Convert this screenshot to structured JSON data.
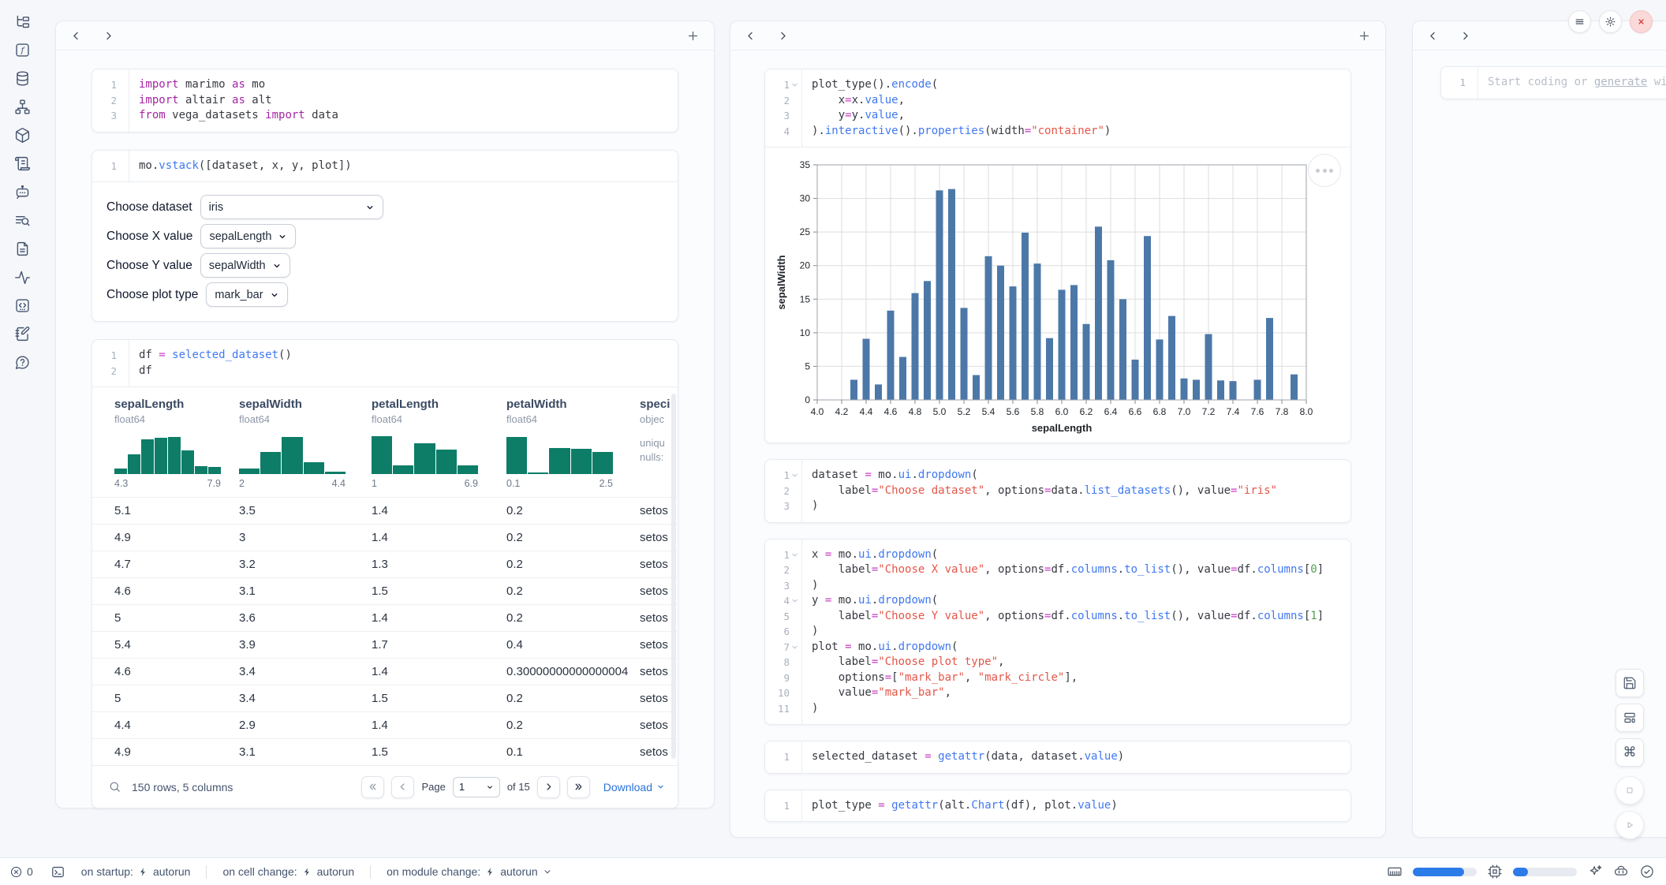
{
  "sidebar": {
    "items": [
      {
        "icon": "file-tree"
      },
      {
        "icon": "variables"
      },
      {
        "icon": "datasources"
      },
      {
        "icon": "dependencies"
      },
      {
        "icon": "packages"
      },
      {
        "icon": "logs"
      },
      {
        "icon": "ai-chat"
      },
      {
        "icon": "list-search"
      },
      {
        "icon": "documentation"
      },
      {
        "icon": "tracing"
      },
      {
        "icon": "snippets"
      },
      {
        "icon": "scratchpad"
      },
      {
        "icon": "help"
      }
    ]
  },
  "left_panel": {
    "cells": [
      {
        "id": "imports-cell",
        "lines": [
          {
            "n": "1",
            "t": [
              [
                "k",
                "import"
              ],
              [
                "p",
                " marimo "
              ],
              [
                "k",
                "as"
              ],
              [
                "p",
                " mo"
              ]
            ]
          },
          {
            "n": "2",
            "t": [
              [
                "k",
                "import"
              ],
              [
                "p",
                " altair "
              ],
              [
                "k",
                "as"
              ],
              [
                "p",
                " alt"
              ]
            ]
          },
          {
            "n": "3",
            "t": [
              [
                "k",
                "from"
              ],
              [
                "p",
                " vega_datasets "
              ],
              [
                "k",
                "import"
              ],
              [
                "p",
                " data"
              ]
            ]
          }
        ]
      },
      {
        "id": "vstack-cell",
        "output": "dropdowns",
        "lines": [
          {
            "n": "1",
            "t": [
              [
                "p",
                "mo."
              ],
              [
                "f",
                "vstack"
              ],
              [
                "p",
                "([dataset, x, y, plot])"
              ]
            ]
          }
        ]
      },
      {
        "id": "df-cell",
        "output": "table",
        "lines": [
          {
            "n": "1",
            "t": [
              [
                "p",
                "df "
              ],
              [
                "o",
                "="
              ],
              [
                "p",
                " "
              ],
              [
                "f",
                "selected_dataset"
              ],
              [
                "p",
                "()"
              ]
            ]
          },
          {
            "n": "2",
            "t": [
              [
                "p",
                "df"
              ]
            ]
          }
        ]
      }
    ],
    "dropdowns": [
      {
        "label": "Choose dataset",
        "value": "iris",
        "wide": true
      },
      {
        "label": "Choose X value",
        "value": "sepalLength"
      },
      {
        "label": "Choose Y value",
        "value": "sepalWidth"
      },
      {
        "label": "Choose plot type",
        "value": "mark_bar"
      }
    ],
    "table": {
      "columns": [
        {
          "name": "sepalLength",
          "dtype": "float64",
          "min": "4.3",
          "max": "7.9",
          "hist": [
            14,
            50,
            88,
            92,
            95,
            60,
            20,
            18
          ]
        },
        {
          "name": "sepalWidth",
          "dtype": "float64",
          "min": "2",
          "max": "4.4",
          "hist": [
            14,
            56,
            95,
            30,
            6
          ]
        },
        {
          "name": "petalLength",
          "dtype": "float64",
          "min": "1",
          "max": "6.9",
          "hist": [
            97,
            22,
            78,
            62,
            22
          ]
        },
        {
          "name": "petalWidth",
          "dtype": "float64",
          "min": "0.1",
          "max": "2.5",
          "hist": [
            95,
            5,
            66,
            64,
            56
          ]
        },
        {
          "name": "speci",
          "dtype": "objec",
          "meta": [
            "uniqu",
            "nulls:"
          ]
        }
      ],
      "rows": [
        [
          "5.1",
          "3.5",
          "1.4",
          "0.2",
          "setos"
        ],
        [
          "4.9",
          "3",
          "1.4",
          "0.2",
          "setos"
        ],
        [
          "4.7",
          "3.2",
          "1.3",
          "0.2",
          "setos"
        ],
        [
          "4.6",
          "3.1",
          "1.5",
          "0.2",
          "setos"
        ],
        [
          "5",
          "3.6",
          "1.4",
          "0.2",
          "setos"
        ],
        [
          "5.4",
          "3.9",
          "1.7",
          "0.4",
          "setos"
        ],
        [
          "4.6",
          "3.4",
          "1.4",
          "0.30000000000000004",
          "setos"
        ],
        [
          "5",
          "3.4",
          "1.5",
          "0.2",
          "setos"
        ],
        [
          "4.4",
          "2.9",
          "1.4",
          "0.2",
          "setos"
        ],
        [
          "4.9",
          "3.1",
          "1.5",
          "0.1",
          "setos"
        ]
      ],
      "footer": {
        "summary": "150 rows, 5 columns",
        "page_label": "Page",
        "page_value": "1",
        "pages_label": "of 15",
        "download_label": "Download"
      }
    }
  },
  "middle_panel": {
    "cells": [
      {
        "id": "plot-cell",
        "output": "chart",
        "lines": [
          {
            "n": "1",
            "fold": true,
            "t": [
              [
                "p",
                "plot_type()."
              ],
              [
                "f",
                "encode"
              ],
              [
                "p",
                "("
              ]
            ]
          },
          {
            "n": "2",
            "t": [
              [
                "p",
                "    x"
              ],
              [
                "o",
                "="
              ],
              [
                "p",
                "x."
              ],
              [
                "f",
                "value"
              ],
              [
                "p",
                ","
              ]
            ]
          },
          {
            "n": "3",
            "t": [
              [
                "p",
                "    y"
              ],
              [
                "o",
                "="
              ],
              [
                "p",
                "y."
              ],
              [
                "f",
                "value"
              ],
              [
                "p",
                ","
              ]
            ]
          },
          {
            "n": "4",
            "t": [
              [
                "p",
                ")."
              ],
              [
                "f",
                "interactive"
              ],
              [
                "p",
                "()."
              ],
              [
                "f",
                "properties"
              ],
              [
                "p",
                "(width"
              ],
              [
                "o",
                "="
              ],
              [
                "s",
                "\"container\""
              ],
              [
                "p",
                ")"
              ]
            ]
          }
        ]
      },
      {
        "id": "dataset-dropdown-cell",
        "lines": [
          {
            "n": "1",
            "fold": true,
            "t": [
              [
                "p",
                "dataset "
              ],
              [
                "o",
                "="
              ],
              [
                "p",
                " mo."
              ],
              [
                "f",
                "ui"
              ],
              [
                "p",
                "."
              ],
              [
                "f",
                "dropdown"
              ],
              [
                "p",
                "("
              ]
            ]
          },
          {
            "n": "2",
            "t": [
              [
                "p",
                "    label"
              ],
              [
                "o",
                "="
              ],
              [
                "s",
                "\"Choose dataset\""
              ],
              [
                "p",
                ", options"
              ],
              [
                "o",
                "="
              ],
              [
                "p",
                "data."
              ],
              [
                "f",
                "list_datasets"
              ],
              [
                "p",
                "(), value"
              ],
              [
                "o",
                "="
              ],
              [
                "s",
                "\"iris\""
              ]
            ]
          },
          {
            "n": "3",
            "t": [
              [
                "p",
                ")"
              ]
            ]
          }
        ]
      },
      {
        "id": "xy-plot-dropdowns-cell",
        "lines": [
          {
            "n": "1",
            "fold": true,
            "t": [
              [
                "p",
                "x "
              ],
              [
                "o",
                "="
              ],
              [
                "p",
                " mo."
              ],
              [
                "f",
                "ui"
              ],
              [
                "p",
                "."
              ],
              [
                "f",
                "dropdown"
              ],
              [
                "p",
                "("
              ]
            ]
          },
          {
            "n": "2",
            "t": [
              [
                "p",
                "    label"
              ],
              [
                "o",
                "="
              ],
              [
                "s",
                "\"Choose X value\""
              ],
              [
                "p",
                ", options"
              ],
              [
                "o",
                "="
              ],
              [
                "p",
                "df."
              ],
              [
                "f",
                "columns"
              ],
              [
                "p",
                "."
              ],
              [
                "f",
                "to_list"
              ],
              [
                "p",
                "(), value"
              ],
              [
                "o",
                "="
              ],
              [
                "p",
                "df."
              ],
              [
                "f",
                "columns"
              ],
              [
                "p",
                "["
              ],
              [
                "n",
                "0"
              ],
              [
                "p",
                "]"
              ]
            ]
          },
          {
            "n": "3",
            "t": [
              [
                "p",
                ")"
              ]
            ]
          },
          {
            "n": "4",
            "fold": true,
            "t": [
              [
                "p",
                "y "
              ],
              [
                "o",
                "="
              ],
              [
                "p",
                " mo."
              ],
              [
                "f",
                "ui"
              ],
              [
                "p",
                "."
              ],
              [
                "f",
                "dropdown"
              ],
              [
                "p",
                "("
              ]
            ]
          },
          {
            "n": "5",
            "t": [
              [
                "p",
                "    label"
              ],
              [
                "o",
                "="
              ],
              [
                "s",
                "\"Choose Y value\""
              ],
              [
                "p",
                ", options"
              ],
              [
                "o",
                "="
              ],
              [
                "p",
                "df."
              ],
              [
                "f",
                "columns"
              ],
              [
                "p",
                "."
              ],
              [
                "f",
                "to_list"
              ],
              [
                "p",
                "(), value"
              ],
              [
                "o",
                "="
              ],
              [
                "p",
                "df."
              ],
              [
                "f",
                "columns"
              ],
              [
                "p",
                "["
              ],
              [
                "n",
                "1"
              ],
              [
                "p",
                "]"
              ]
            ]
          },
          {
            "n": "6",
            "t": [
              [
                "p",
                ")"
              ]
            ]
          },
          {
            "n": "7",
            "fold": true,
            "t": [
              [
                "p",
                "plot "
              ],
              [
                "o",
                "="
              ],
              [
                "p",
                " mo."
              ],
              [
                "f",
                "ui"
              ],
              [
                "p",
                "."
              ],
              [
                "f",
                "dropdown"
              ],
              [
                "p",
                "("
              ]
            ]
          },
          {
            "n": "8",
            "t": [
              [
                "p",
                "    label"
              ],
              [
                "o",
                "="
              ],
              [
                "s",
                "\"Choose plot type\""
              ],
              [
                "p",
                ","
              ]
            ]
          },
          {
            "n": "9",
            "t": [
              [
                "p",
                "    options"
              ],
              [
                "o",
                "="
              ],
              [
                "p",
                "["
              ],
              [
                "s",
                "\"mark_bar\""
              ],
              [
                "p",
                ", "
              ],
              [
                "s",
                "\"mark_circle\""
              ],
              [
                "p",
                "],"
              ]
            ]
          },
          {
            "n": "10",
            "t": [
              [
                "p",
                "    value"
              ],
              [
                "o",
                "="
              ],
              [
                "s",
                "\"mark_bar\""
              ],
              [
                "p",
                ","
              ]
            ]
          },
          {
            "n": "11",
            "t": [
              [
                "p",
                ")"
              ]
            ]
          }
        ]
      },
      {
        "id": "selected-dataset-cell",
        "lines": [
          {
            "n": "1",
            "t": [
              [
                "p",
                "selected_dataset "
              ],
              [
                "o",
                "="
              ],
              [
                "p",
                " "
              ],
              [
                "f",
                "getattr"
              ],
              [
                "p",
                "(data, dataset."
              ],
              [
                "f",
                "value"
              ],
              [
                "p",
                ")"
              ]
            ]
          }
        ]
      },
      {
        "id": "plot-type-cell",
        "lines": [
          {
            "n": "1",
            "t": [
              [
                "p",
                "plot_type "
              ],
              [
                "o",
                "="
              ],
              [
                "p",
                " "
              ],
              [
                "f",
                "getattr"
              ],
              [
                "p",
                "(alt."
              ],
              [
                "f",
                "Chart"
              ],
              [
                "p",
                "(df), plot."
              ],
              [
                "f",
                "value"
              ],
              [
                "p",
                ")"
              ]
            ]
          }
        ]
      }
    ]
  },
  "right_panel": {
    "line_number": "1",
    "placeholder_pre": "Start coding or ",
    "placeholder_link": "generate",
    "placeholder_post": " with"
  },
  "chart_data": {
    "type": "bar",
    "title": "",
    "xlabel": "sepalLength",
    "ylabel": "sepalWidth",
    "xlim": [
      4.0,
      8.0
    ],
    "ylim": [
      0,
      35
    ],
    "x_tick_step": 0.2,
    "y_tick_step": 5,
    "grid": true,
    "bar_color": "#4c78a8",
    "x": [
      4.3,
      4.4,
      4.5,
      4.6,
      4.7,
      4.8,
      4.9,
      5.0,
      5.1,
      5.2,
      5.3,
      5.4,
      5.5,
      5.6,
      5.7,
      5.8,
      5.9,
      6.0,
      6.1,
      6.2,
      6.3,
      6.4,
      6.5,
      6.6,
      6.7,
      6.8,
      6.9,
      7.0,
      7.1,
      7.2,
      7.3,
      7.4,
      7.6,
      7.7,
      7.9
    ],
    "values": [
      3.0,
      9.1,
      2.3,
      13.3,
      6.4,
      15.9,
      17.7,
      31.2,
      31.4,
      13.7,
      3.7,
      21.4,
      20.0,
      16.9,
      24.9,
      20.3,
      9.2,
      16.4,
      17.1,
      11.3,
      25.8,
      20.8,
      15.0,
      6.0,
      24.4,
      9.0,
      12.5,
      3.2,
      3.0,
      9.8,
      2.9,
      2.8,
      3.0,
      12.2,
      3.8
    ]
  },
  "statusbar": {
    "errors_count": "0",
    "items": [
      {
        "label": "on startup:",
        "value": "autorun"
      },
      {
        "label": "on cell change:",
        "value": "autorun"
      },
      {
        "label": "on module change:",
        "value": "autorun"
      }
    ],
    "ram_percent": 80,
    "cpu_percent": 23
  }
}
